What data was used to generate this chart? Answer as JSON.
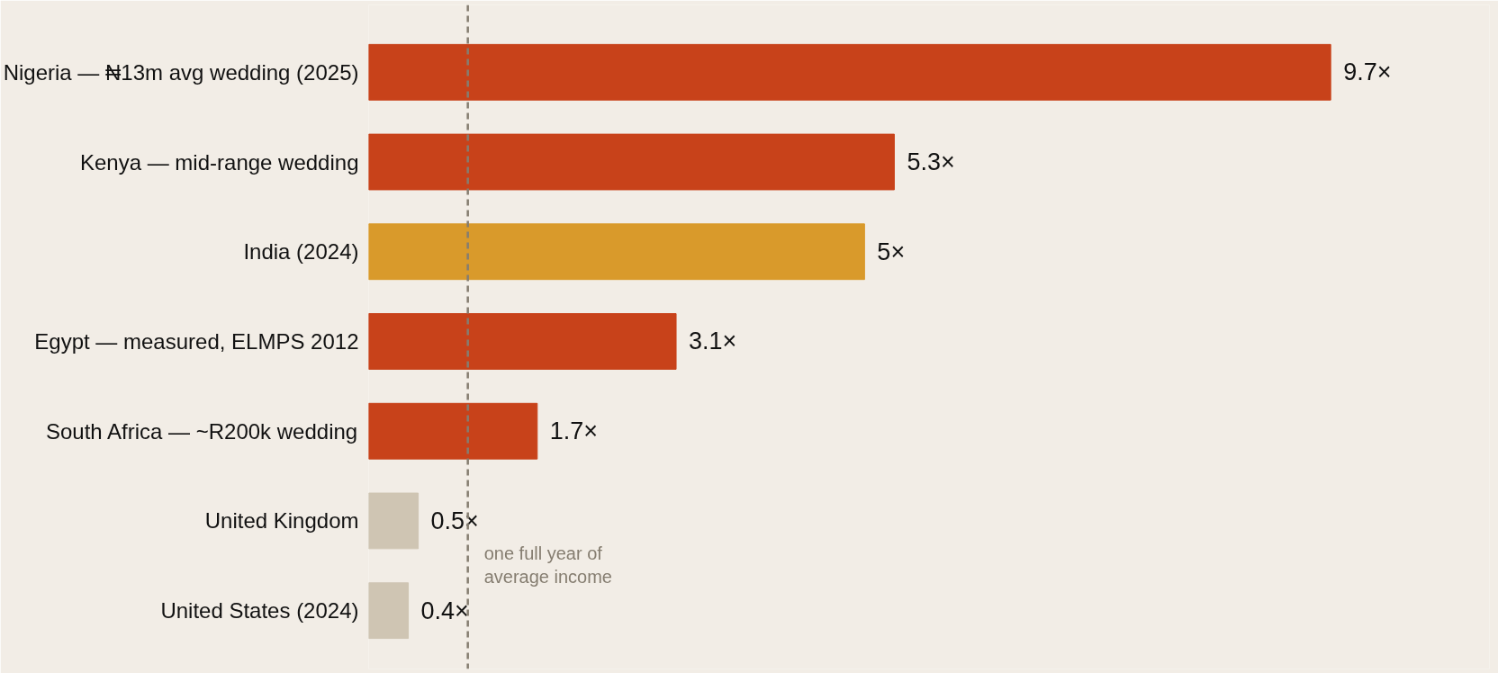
{
  "chart_data": {
    "type": "bar",
    "orientation": "horizontal",
    "categories": [
      "Nigeria — ₦13m avg wedding (2025)",
      "Kenya — mid-range wedding",
      "India (2024)",
      "Egypt — measured, ELMPS 2012",
      "South Africa — ~R200k wedding",
      "United Kingdom",
      "United States (2024)"
    ],
    "values": [
      9.7,
      5.3,
      5,
      3.1,
      1.7,
      0.5,
      0.4
    ],
    "colors": [
      "#c8421a",
      "#c8421a",
      "#d99a2b",
      "#c8421a",
      "#c8421a",
      "#cfc5b3",
      "#cfc5b3"
    ],
    "value_labels": [
      "9.7×",
      "5.3×",
      "5×",
      "3.1×",
      "1.7×",
      "0.5×",
      "0.4×"
    ],
    "ref_lines": [
      {
        "axis": "x",
        "value": 1,
        "label": "one full year of\naverage income",
        "color": "#857d70",
        "line_style": "dashed"
      }
    ],
    "grid": false,
    "tick_labels": "y"
  }
}
